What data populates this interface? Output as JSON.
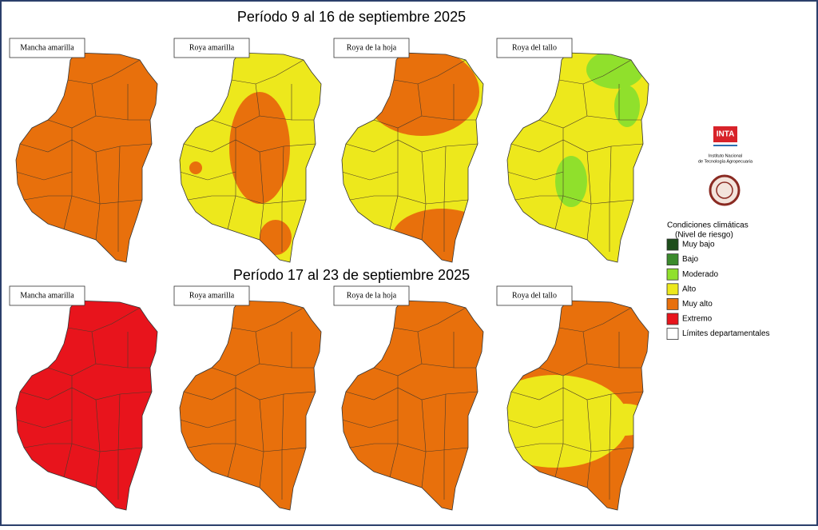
{
  "header": {
    "periods": [
      "Período 9 al 16 de septiembre 2025",
      "Período 17 al 23 de septiembre 2025"
    ]
  },
  "panels": [
    [
      "Mancha amarilla",
      "Roya amarilla",
      "Roya de la hoja",
      "Roya del tallo"
    ],
    [
      "Mancha amarilla",
      "Roya amarilla",
      "Roya de la hoja",
      "Roya del tallo"
    ]
  ],
  "logo": {
    "name": "INTA",
    "subtitle": [
      "Instituto Nacional",
      "de Tecnología Agropecuaria"
    ]
  },
  "legend": {
    "title": [
      "Condiciones climáticas",
      "(Nivel de riesgo)"
    ],
    "items": [
      {
        "label": "Muy bajo",
        "color": "#1d4d1a"
      },
      {
        "label": "Bajo",
        "color": "#3b8a2c"
      },
      {
        "label": "Moderado",
        "color": "#90e02c"
      },
      {
        "label": "Alto",
        "color": "#ede81c"
      },
      {
        "label": "Muy alto",
        "color": "#e8700c"
      },
      {
        "label": "Extremo",
        "color": "#e8141c"
      },
      {
        "label": "Límites departamentales",
        "color": "#ffffff"
      }
    ]
  }
}
